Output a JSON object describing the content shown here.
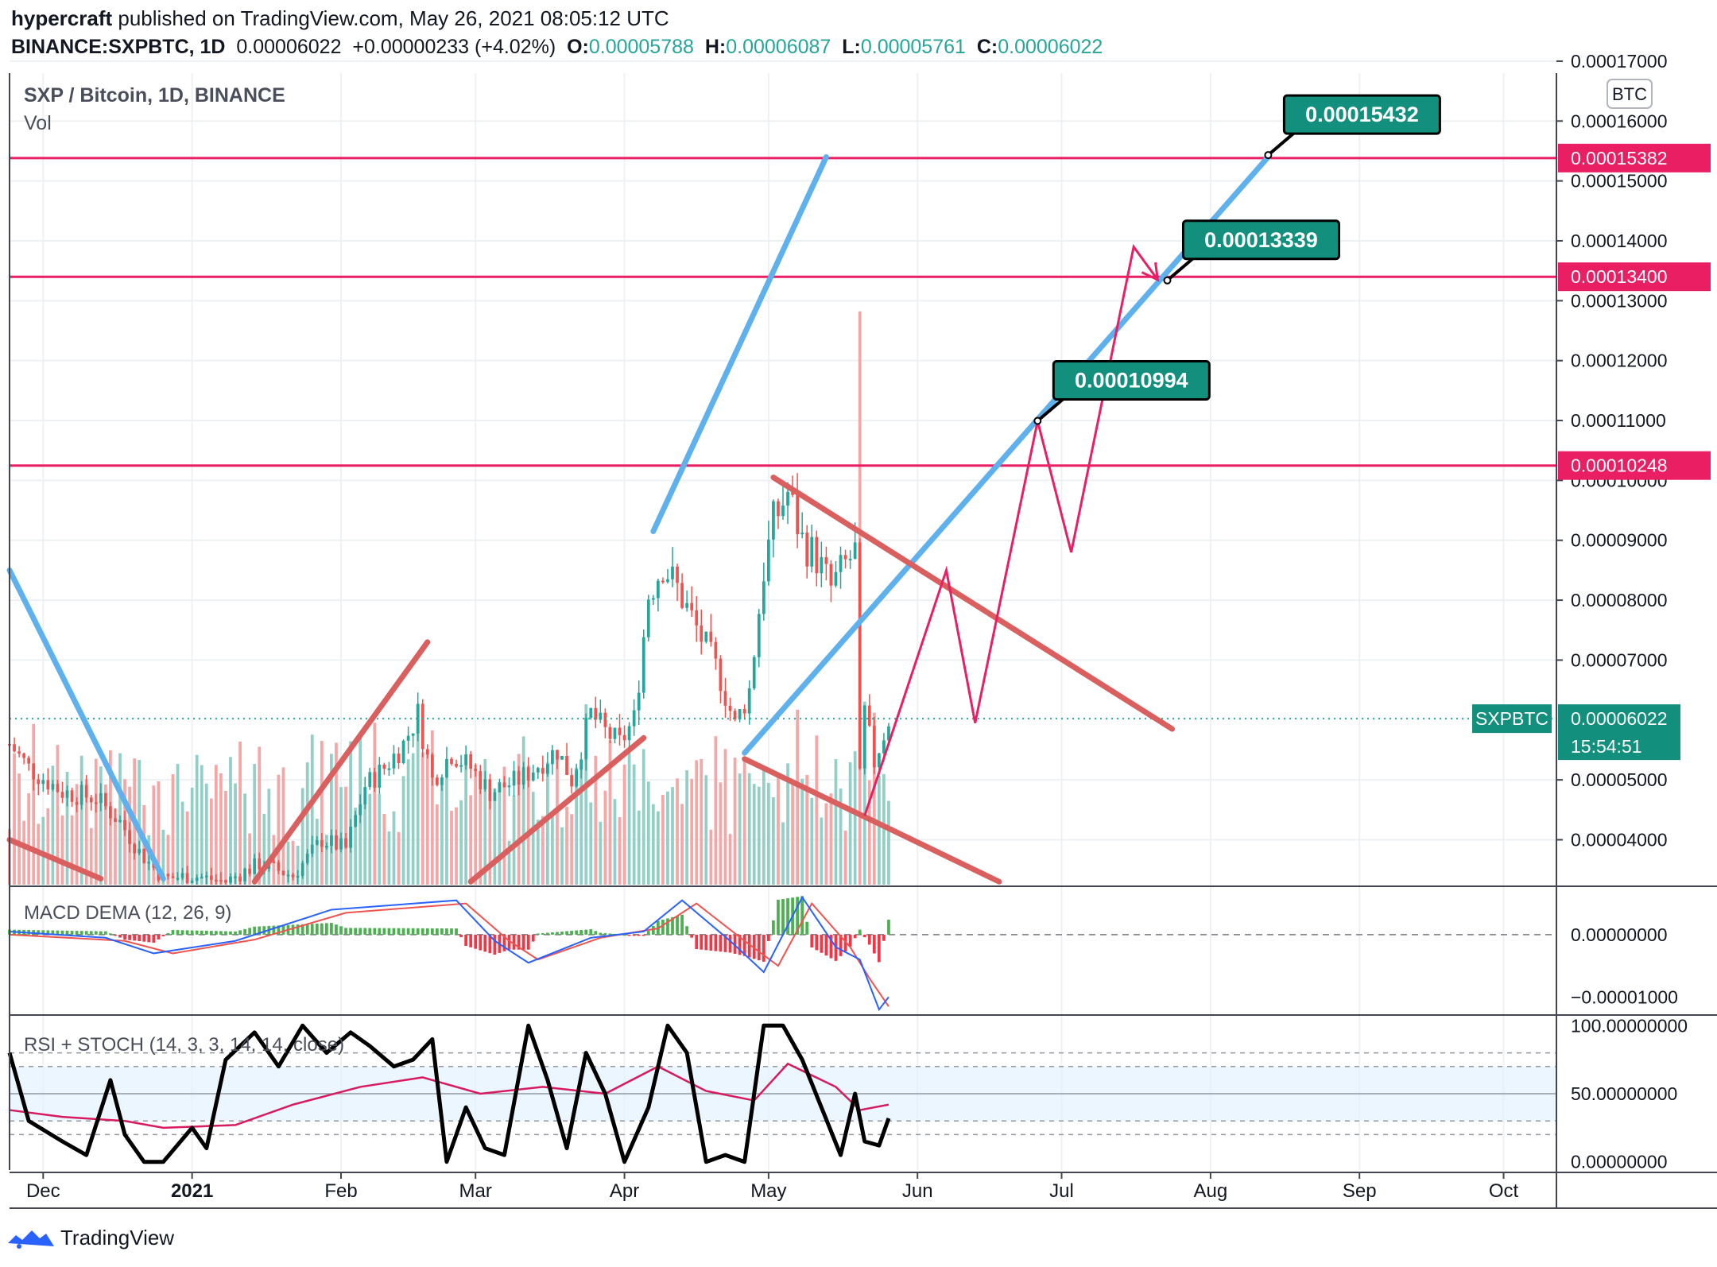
{
  "header": {
    "user": "hypercraft",
    "published": "published on TradingView.com, May 26, 2021 08:05:12 UTC",
    "symbol": "BINANCE:SXPBTC, 1D",
    "last": "0.00006022",
    "change": "+0.00000233 (+4.02%)",
    "o_label": "O:",
    "o": "0.00005788",
    "h_label": "H:",
    "h": "0.00006087",
    "l_label": "L:",
    "l": "0.00005761",
    "c_label": "C:",
    "c": "0.00006022"
  },
  "legend": {
    "title": "SXP / Bitcoin, 1D, BINANCE",
    "vol": "Vol"
  },
  "currency_badge": "BTC",
  "colors": {
    "up": "#26a69a",
    "down": "#ef5350",
    "up_vol": "#93cfc6",
    "down_vol": "#f5a6a6",
    "level": "#e91e63",
    "blue": "#5eb1ec",
    "trend": "#d9605f",
    "badge_bg": "#138f7d",
    "pink_badge": "#e91e63"
  },
  "chart_data": [
    {
      "type": "candlestick",
      "title": "SXP / Bitcoin, 1D, BINANCE",
      "y_unit": "BTC",
      "x_tick_labels": [
        "Dec",
        "2021",
        "Feb",
        "Mar",
        "Apr",
        "May",
        "Jun",
        "Jul",
        "Aug",
        "Sep",
        "Oct"
      ],
      "x_range": [
        "2020-11-24",
        "2021-10-12"
      ],
      "y_range": [
        3.25e-05,
        0.000168
      ],
      "y_tick_labels": [
        "0.00004000",
        "0.00005000",
        "0.00007000",
        "0.00008000",
        "0.00009000",
        "0.00010000",
        "0.00011000",
        "0.00012000",
        "0.00013000",
        "0.00014000",
        "0.00015000",
        "0.00016000",
        "0.00017000"
      ],
      "ohlc_path": [
        [
          "2020-11-24",
          5.6e-05
        ],
        [
          "2020-11-28",
          5.2e-05
        ],
        [
          "2020-12-05",
          4.8e-05
        ],
        [
          "2020-12-12",
          4.7e-05
        ],
        [
          "2020-12-17",
          4.3e-05
        ],
        [
          "2020-12-21",
          3.8e-05
        ],
        [
          "2020-12-26",
          3.35e-05
        ],
        [
          "2021-01-01",
          3.4e-05
        ],
        [
          "2021-01-08",
          3.3e-05
        ],
        [
          "2021-01-15",
          3.6e-05
        ],
        [
          "2021-01-22",
          3.4e-05
        ],
        [
          "2021-01-28",
          4e-05
        ],
        [
          "2021-02-02",
          3.85e-05
        ],
        [
          "2021-02-06",
          4.9e-05
        ],
        [
          "2021-02-10",
          5.2e-05
        ],
        [
          "2021-02-14",
          5.6e-05
        ],
        [
          "2021-02-17",
          6.1e-05
        ],
        [
          "2021-02-20",
          5e-05
        ],
        [
          "2021-02-24",
          5.45e-05
        ],
        [
          "2021-02-28",
          5.2e-05
        ],
        [
          "2021-03-04",
          4.8e-05
        ],
        [
          "2021-03-10",
          5e-05
        ],
        [
          "2021-03-14",
          5.25e-05
        ],
        [
          "2021-03-18",
          5.5e-05
        ],
        [
          "2021-03-21",
          5e-05
        ],
        [
          "2021-03-25",
          6.1e-05
        ],
        [
          "2021-03-28",
          5.8e-05
        ],
        [
          "2021-03-31",
          5.6e-05
        ],
        [
          "2021-04-03",
          6e-05
        ],
        [
          "2021-04-06",
          8.1e-05
        ],
        [
          "2021-04-09",
          8.6e-05
        ],
        [
          "2021-04-12",
          8.2e-05
        ],
        [
          "2021-04-15",
          7.7e-05
        ],
        [
          "2021-04-18",
          7.2e-05
        ],
        [
          "2021-04-21",
          6.7e-05
        ],
        [
          "2021-04-24",
          5.9e-05
        ],
        [
          "2021-04-27",
          6.5e-05
        ],
        [
          "2021-04-30",
          8.5e-05
        ],
        [
          "2021-05-02",
          9.3e-05
        ],
        [
          "2021-05-05",
          9.8e-05
        ],
        [
          "2021-05-08",
          9e-05
        ],
        [
          "2021-05-11",
          8.7e-05
        ],
        [
          "2021-05-14",
          8.2e-05
        ],
        [
          "2021-05-17",
          8.6e-05
        ],
        [
          "2021-05-19",
          8.8e-05
        ],
        [
          "2021-05-20",
          5e-05
        ],
        [
          "2021-05-21",
          6.1e-05
        ],
        [
          "2021-05-23",
          5.3e-05
        ],
        [
          "2021-05-26",
          6.02e-05
        ]
      ],
      "series": [
        {
          "name": "SXPBTC",
          "last_value": "0.00006022",
          "countdown": "15:54:51"
        }
      ],
      "horizontal_levels": [
        {
          "value": 0.00015382,
          "label": "0.00015382"
        },
        {
          "value": 0.000134,
          "label": "0.00013400"
        },
        {
          "value": 0.00010248,
          "label": "0.00010248"
        }
      ],
      "callouts": [
        {
          "label": "0.00015432",
          "date": "2021-08-13",
          "value": 0.00015432
        },
        {
          "label": "0.00013339",
          "date": "2021-07-23",
          "value": 0.00013339
        },
        {
          "label": "0.00010994",
          "date": "2021-06-26",
          "value": 0.00010994
        }
      ],
      "drawings": {
        "blue_trendlines": [
          [
            [
              "2020-11-24",
              8.5e-05
            ],
            [
              "2020-12-26",
              3.35e-05
            ]
          ],
          [
            [
              "2021-04-07",
              9.15e-05
            ],
            [
              "2021-05-13",
              0.000154
            ]
          ],
          [
            [
              "2021-04-26",
              5.45e-05
            ],
            [
              "2021-08-13",
              0.000154
            ]
          ]
        ],
        "red_trendlines": [
          [
            [
              "2020-11-24",
              4e-05
            ],
            [
              "2020-12-13",
              3.35e-05
            ]
          ],
          [
            [
              "2021-01-14",
              3.3e-05
            ],
            [
              "2021-02-19",
              7.3e-05
            ]
          ],
          [
            [
              "2021-02-28",
              3.3e-05
            ],
            [
              "2021-04-05",
              5.7e-05
            ]
          ],
          [
            [
              "2021-05-02",
              0.0001005
            ],
            [
              "2021-07-24",
              5.85e-05
            ]
          ],
          [
            [
              "2021-04-26",
              5.35e-05
            ],
            [
              "2021-06-18",
              3.3e-05
            ]
          ]
        ],
        "projection_path": [
          [
            "2021-05-21",
            4.4e-05
          ],
          [
            "2021-06-07",
            8.5e-05
          ],
          [
            "2021-06-13",
            5.95e-05
          ],
          [
            "2021-06-26",
            0.0001099
          ],
          [
            "2021-07-03",
            8.8e-05
          ],
          [
            "2021-07-16",
            0.000139
          ],
          [
            "2021-07-21",
            0.0001335
          ]
        ]
      }
    },
    {
      "type": "bar",
      "title": "Vol",
      "note": "daily volume bars, colored by candle direction"
    },
    {
      "type": "line",
      "title": "MACD DEMA (12, 26, 9)",
      "y_tick_labels": [
        "0.00000000",
        "−0.00001000"
      ],
      "y_range": [
        -1.25e-05,
        7.5e-06
      ],
      "series": [
        {
          "name": "MACD",
          "points": [
            [
              "2020-11-24",
              5e-07
            ],
            [
              "2020-12-14",
              -5e-07
            ],
            [
              "2020-12-24",
              -3e-06
            ],
            [
              "2021-01-10",
              -1e-06
            ],
            [
              "2021-01-30",
              4e-06
            ],
            [
              "2021-02-25",
              5.5e-06
            ],
            [
              "2021-03-05",
              -1e-06
            ],
            [
              "2021-03-12",
              -4.5e-06
            ],
            [
              "2021-03-25",
              -5e-07
            ],
            [
              "2021-04-05",
              5e-07
            ],
            [
              "2021-04-13",
              5.5e-06
            ],
            [
              "2021-04-23",
              -1e-06
            ],
            [
              "2021-04-30",
              -6e-06
            ],
            [
              "2021-05-08",
              6e-06
            ],
            [
              "2021-05-15",
              -2e-06
            ],
            [
              "2021-05-20",
              -4e-06
            ],
            [
              "2021-05-24",
              -1.2e-05
            ],
            [
              "2021-05-26",
              -1e-05
            ]
          ]
        },
        {
          "name": "Signal",
          "points": [
            [
              "2020-11-24",
              0.0
            ],
            [
              "2020-12-18",
              -1e-06
            ],
            [
              "2020-12-28",
              -3e-06
            ],
            [
              "2021-01-14",
              -8e-07
            ],
            [
              "2021-02-02",
              3.5e-06
            ],
            [
              "2021-02-27",
              5e-06
            ],
            [
              "2021-03-08",
              -1e-06
            ],
            [
              "2021-03-14",
              -4e-06
            ],
            [
              "2021-03-27",
              -5e-07
            ],
            [
              "2021-04-08",
              1e-06
            ],
            [
              "2021-04-16",
              5e-06
            ],
            [
              "2021-04-26",
              -1e-06
            ],
            [
              "2021-05-03",
              -5e-06
            ],
            [
              "2021-05-10",
              5e-06
            ],
            [
              "2021-05-18",
              -2e-06
            ],
            [
              "2021-05-22",
              -7e-06
            ],
            [
              "2021-05-26",
              -1.15e-05
            ]
          ]
        }
      ]
    },
    {
      "type": "line",
      "title": "RSI + STOCH (14, 3, 3, 14, 14, close)",
      "y_tick_labels": [
        "100.00000000",
        "50.00000000",
        "0.00000000"
      ],
      "y_range": [
        -6,
        106
      ],
      "bands": [
        70,
        50,
        30
      ],
      "series": [
        {
          "name": "Stoch",
          "points": [
            [
              "2020-11-24",
              80
            ],
            [
              "2020-11-28",
              30
            ],
            [
              "2020-12-05",
              15
            ],
            [
              "2020-12-10",
              5
            ],
            [
              "2020-12-15",
              60
            ],
            [
              "2020-12-18",
              20
            ],
            [
              "2020-12-22",
              0
            ],
            [
              "2020-12-26",
              0
            ],
            [
              "2021-01-01",
              25
            ],
            [
              "2021-01-04",
              10
            ],
            [
              "2021-01-08",
              75
            ],
            [
              "2021-01-14",
              95
            ],
            [
              "2021-01-19",
              70
            ],
            [
              "2021-01-24",
              100
            ],
            [
              "2021-01-29",
              80
            ],
            [
              "2021-02-03",
              95
            ],
            [
              "2021-02-07",
              85
            ],
            [
              "2021-02-12",
              70
            ],
            [
              "2021-02-16",
              75
            ],
            [
              "2021-02-20",
              90
            ],
            [
              "2021-02-23",
              0
            ],
            [
              "2021-02-27",
              40
            ],
            [
              "2021-03-03",
              10
            ],
            [
              "2021-03-07",
              5
            ],
            [
              "2021-03-12",
              100
            ],
            [
              "2021-03-16",
              60
            ],
            [
              "2021-03-20",
              10
            ],
            [
              "2021-03-24",
              80
            ],
            [
              "2021-03-28",
              50
            ],
            [
              "2021-04-01",
              0
            ],
            [
              "2021-04-06",
              40
            ],
            [
              "2021-04-10",
              100
            ],
            [
              "2021-04-14",
              80
            ],
            [
              "2021-04-18",
              0
            ],
            [
              "2021-04-22",
              5
            ],
            [
              "2021-04-26",
              0
            ],
            [
              "2021-04-30",
              100
            ],
            [
              "2021-05-04",
              100
            ],
            [
              "2021-05-08",
              75
            ],
            [
              "2021-05-12",
              40
            ],
            [
              "2021-05-16",
              5
            ],
            [
              "2021-05-19",
              50
            ],
            [
              "2021-05-21",
              15
            ],
            [
              "2021-05-24",
              12
            ],
            [
              "2021-05-26",
              32
            ]
          ]
        },
        {
          "name": "RSI",
          "points": [
            [
              "2020-11-24",
              38
            ],
            [
              "2020-12-05",
              33
            ],
            [
              "2020-12-18",
              30
            ],
            [
              "2020-12-26",
              25
            ],
            [
              "2021-01-10",
              27
            ],
            [
              "2021-01-22",
              42
            ],
            [
              "2021-02-05",
              55
            ],
            [
              "2021-02-18",
              62
            ],
            [
              "2021-03-02",
              50
            ],
            [
              "2021-03-15",
              55
            ],
            [
              "2021-03-28",
              50
            ],
            [
              "2021-04-08",
              70
            ],
            [
              "2021-04-18",
              52
            ],
            [
              "2021-04-28",
              45
            ],
            [
              "2021-05-05",
              72
            ],
            [
              "2021-05-15",
              55
            ],
            [
              "2021-05-20",
              38
            ],
            [
              "2021-05-26",
              42
            ]
          ]
        }
      ]
    }
  ],
  "footer": {
    "brand": "TradingView"
  }
}
